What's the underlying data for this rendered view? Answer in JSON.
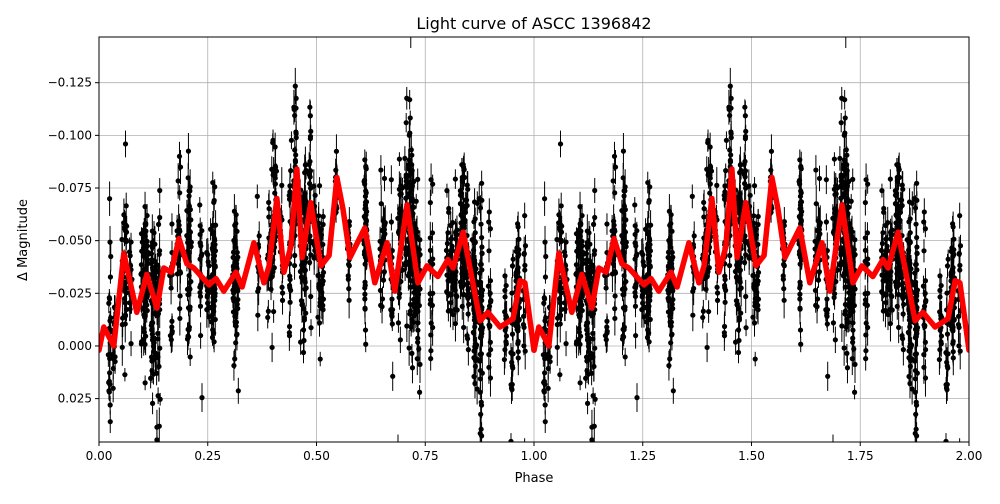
{
  "chart_data": {
    "type": "scatter",
    "title": "Light curve of ASCC 1396842",
    "xlabel": "Phase",
    "ylabel": "Δ Magnitude",
    "xlim": [
      0,
      2
    ],
    "ylim": [
      0.0456,
      -0.1467
    ],
    "y_inverted": true,
    "grid": true,
    "x_ticks": [
      "0.00",
      "0.25",
      "0.50",
      "0.75",
      "1.00",
      "1.25",
      "1.50",
      "1.75",
      "2.00"
    ],
    "x_tick_values": [
      0,
      0.25,
      0.5,
      0.75,
      1,
      1.25,
      1.5,
      1.75,
      2
    ],
    "y_ticks": [
      "0.025",
      "0.000",
      "−0.025",
      "−0.050",
      "−0.075",
      "−0.100",
      "−0.125"
    ],
    "y_tick_values": [
      0.025,
      0,
      -0.025,
      -0.05,
      -0.075,
      -0.1,
      -0.125
    ],
    "series": [
      {
        "role": "observations with error bars",
        "color": "#000000",
        "marker": "circle"
      },
      {
        "role": "binned curve, repeated each phase cycle",
        "color": "#ff0000",
        "phase": [
          0.0,
          0.011,
          0.034,
          0.057,
          0.087,
          0.11,
          0.133,
          0.149,
          0.166,
          0.184,
          0.202,
          0.218,
          0.253,
          0.269,
          0.287,
          0.315,
          0.329,
          0.356,
          0.379,
          0.391,
          0.409,
          0.425,
          0.441,
          0.455,
          0.467,
          0.487,
          0.51,
          0.529,
          0.547,
          0.561,
          0.577,
          0.611,
          0.634,
          0.662,
          0.68,
          0.708,
          0.733,
          0.754,
          0.779,
          0.802,
          0.814,
          0.837,
          0.876,
          0.894,
          0.922,
          0.952,
          0.968,
          0.979,
          1.0
        ],
        "magnitude": [
          0.002,
          -0.009,
          0.0,
          -0.044,
          -0.016,
          -0.034,
          -0.018,
          -0.037,
          -0.035,
          -0.051,
          -0.039,
          -0.037,
          -0.029,
          -0.032,
          -0.026,
          -0.035,
          -0.028,
          -0.049,
          -0.03,
          -0.038,
          -0.07,
          -0.035,
          -0.047,
          -0.084,
          -0.042,
          -0.068,
          -0.038,
          -0.043,
          -0.08,
          -0.065,
          -0.042,
          -0.056,
          -0.03,
          -0.049,
          -0.026,
          -0.067,
          -0.03,
          -0.038,
          -0.033,
          -0.041,
          -0.037,
          -0.054,
          -0.012,
          -0.016,
          -0.009,
          -0.013,
          -0.031,
          -0.03,
          0.002
        ]
      }
    ]
  }
}
